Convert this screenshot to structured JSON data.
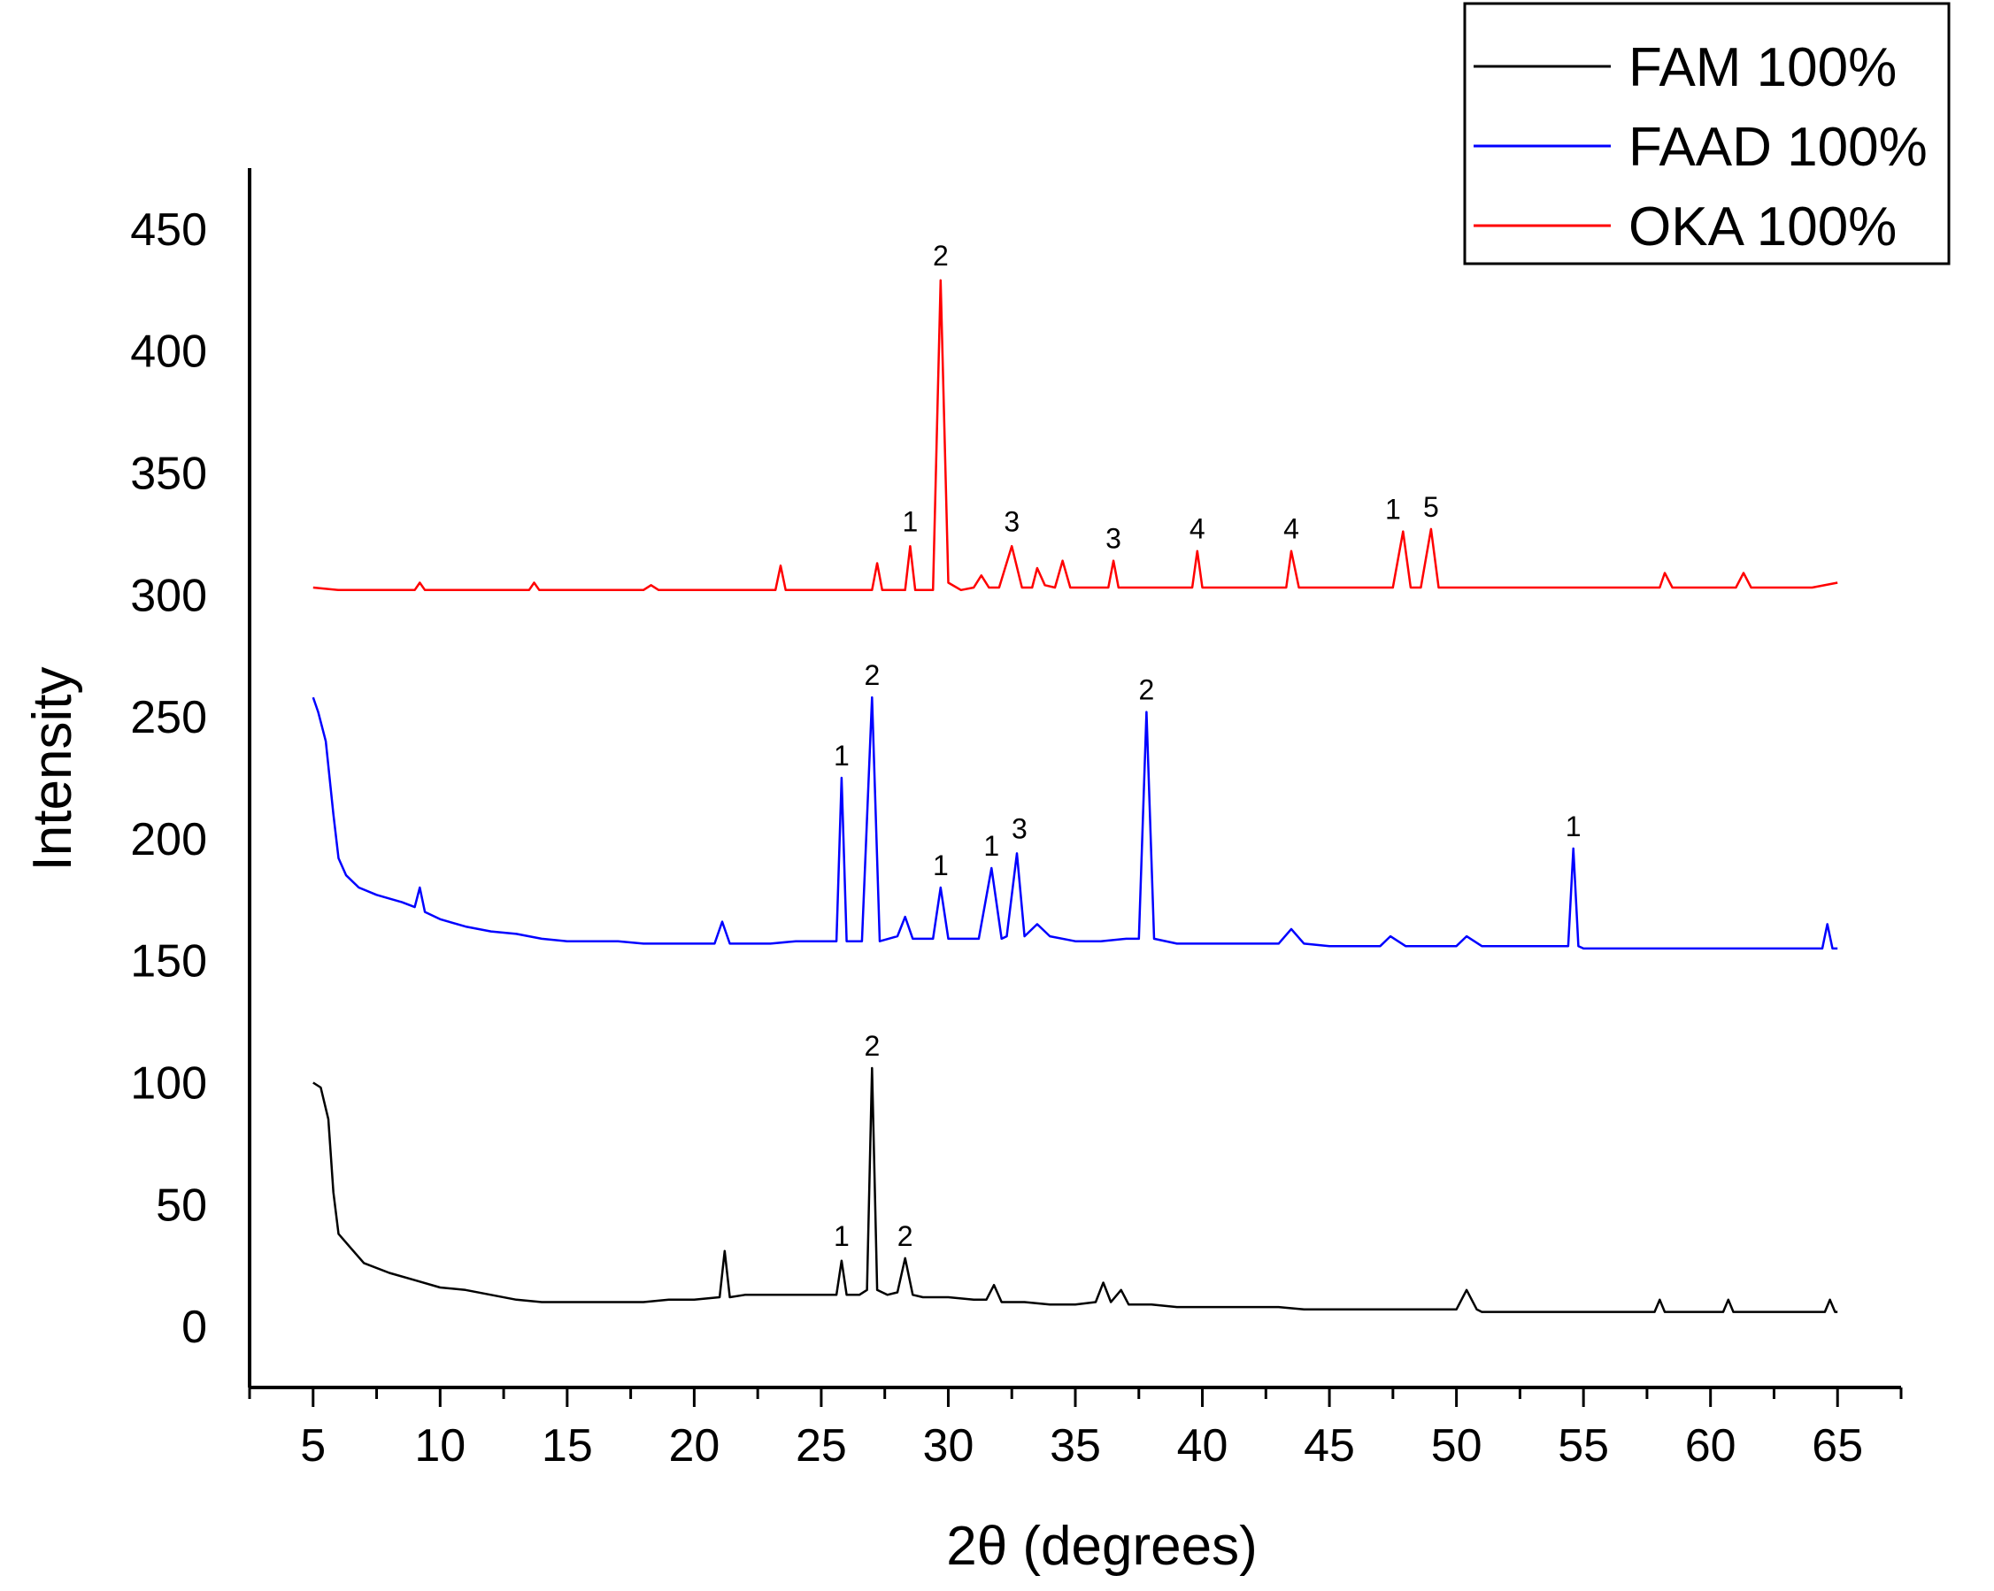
{
  "chart_data": {
    "type": "line",
    "title": "",
    "xlabel": "2θ (degrees)",
    "ylabel": "Intensity",
    "xlim": [
      2.5,
      67.5
    ],
    "ylim": [
      -25,
      475
    ],
    "x_ticks": [
      5,
      10,
      15,
      20,
      25,
      30,
      35,
      40,
      45,
      50,
      55,
      60,
      65
    ],
    "x_tick_labels": [
      "5",
      "10",
      "15",
      "20",
      "25",
      "30",
      "35",
      "40",
      "45",
      "50",
      "55",
      "60",
      "65"
    ],
    "y_ticks": [
      0,
      50,
      100,
      150,
      200,
      250,
      300,
      350,
      400,
      450
    ],
    "y_tick_labels": [
      "0",
      "50",
      "100",
      "150",
      "200",
      "250",
      "300",
      "350",
      "400",
      "450"
    ],
    "legend_position": "top-right",
    "series": [
      {
        "name": "FAM 100%",
        "color": "#000000",
        "points": [
          [
            5,
            100
          ],
          [
            5.3,
            98
          ],
          [
            5.6,
            85
          ],
          [
            5.8,
            55
          ],
          [
            6.0,
            38
          ],
          [
            6.5,
            32
          ],
          [
            7,
            26
          ],
          [
            8,
            22
          ],
          [
            9,
            19
          ],
          [
            10,
            16
          ],
          [
            11,
            15
          ],
          [
            12,
            13
          ],
          [
            13,
            11
          ],
          [
            14,
            10
          ],
          [
            15,
            10
          ],
          [
            16,
            10
          ],
          [
            17,
            10
          ],
          [
            18,
            10
          ],
          [
            19,
            11
          ],
          [
            20,
            11
          ],
          [
            21.0,
            12
          ],
          [
            21.2,
            31
          ],
          [
            21.4,
            12
          ],
          [
            22,
            13
          ],
          [
            23,
            13
          ],
          [
            24,
            13
          ],
          [
            25,
            13
          ],
          [
            25.6,
            13
          ],
          [
            25.8,
            27
          ],
          [
            26.0,
            13
          ],
          [
            26.5,
            13
          ],
          [
            26.8,
            15
          ],
          [
            27.0,
            106
          ],
          [
            27.2,
            15
          ],
          [
            27.6,
            13
          ],
          [
            28.0,
            14
          ],
          [
            28.3,
            28
          ],
          [
            28.6,
            13
          ],
          [
            29,
            12
          ],
          [
            30,
            12
          ],
          [
            31,
            11
          ],
          [
            31.5,
            11
          ],
          [
            31.8,
            17
          ],
          [
            32.1,
            10
          ],
          [
            33,
            10
          ],
          [
            34,
            9
          ],
          [
            35,
            9
          ],
          [
            35.8,
            10
          ],
          [
            36.1,
            18
          ],
          [
            36.4,
            10
          ],
          [
            36.8,
            15
          ],
          [
            37.1,
            9
          ],
          [
            38,
            9
          ],
          [
            39,
            8
          ],
          [
            40,
            8
          ],
          [
            41,
            8
          ],
          [
            42,
            8
          ],
          [
            43,
            8
          ],
          [
            44,
            7
          ],
          [
            45,
            7
          ],
          [
            46,
            7
          ],
          [
            47,
            7
          ],
          [
            48,
            7
          ],
          [
            49,
            7
          ],
          [
            50.0,
            7
          ],
          [
            50.4,
            15
          ],
          [
            50.8,
            7
          ],
          [
            51,
            6
          ],
          [
            52,
            6
          ],
          [
            53,
            6
          ],
          [
            54,
            6
          ],
          [
            55,
            6
          ],
          [
            56,
            6
          ],
          [
            57,
            6
          ],
          [
            57.8,
            6
          ],
          [
            58.0,
            11
          ],
          [
            58.2,
            6
          ],
          [
            59,
            6
          ],
          [
            60,
            6
          ],
          [
            60.5,
            6
          ],
          [
            60.7,
            11
          ],
          [
            60.9,
            6
          ],
          [
            62,
            6
          ],
          [
            63,
            6
          ],
          [
            64,
            6
          ],
          [
            64.5,
            6
          ],
          [
            64.7,
            11
          ],
          [
            64.9,
            6
          ],
          [
            65,
            6
          ]
        ]
      },
      {
        "name": "FAAD 100%",
        "color": "#0000ff",
        "points": [
          [
            5,
            258
          ],
          [
            5.2,
            252
          ],
          [
            5.5,
            240
          ],
          [
            5.8,
            210
          ],
          [
            6.0,
            192
          ],
          [
            6.3,
            185
          ],
          [
            6.8,
            180
          ],
          [
            7.5,
            177
          ],
          [
            8.5,
            174
          ],
          [
            9.0,
            172
          ],
          [
            9.2,
            180
          ],
          [
            9.4,
            170
          ],
          [
            10,
            167
          ],
          [
            11,
            164
          ],
          [
            12,
            162
          ],
          [
            13,
            161
          ],
          [
            14,
            159
          ],
          [
            15,
            158
          ],
          [
            16,
            158
          ],
          [
            17,
            158
          ],
          [
            18,
            157
          ],
          [
            19,
            157
          ],
          [
            20,
            157
          ],
          [
            20.8,
            157
          ],
          [
            21.1,
            166
          ],
          [
            21.4,
            157
          ],
          [
            22,
            157
          ],
          [
            23,
            157
          ],
          [
            24,
            158
          ],
          [
            25,
            158
          ],
          [
            25.6,
            158
          ],
          [
            25.8,
            225
          ],
          [
            26.0,
            158
          ],
          [
            26.6,
            158
          ],
          [
            27.0,
            258
          ],
          [
            27.3,
            158
          ],
          [
            28.0,
            160
          ],
          [
            28.3,
            168
          ],
          [
            28.6,
            159
          ],
          [
            29.4,
            159
          ],
          [
            29.7,
            180
          ],
          [
            30.0,
            159
          ],
          [
            31.2,
            159
          ],
          [
            31.7,
            188
          ],
          [
            32.1,
            159
          ],
          [
            32.3,
            160
          ],
          [
            32.7,
            194
          ],
          [
            33.0,
            160
          ],
          [
            33.5,
            165
          ],
          [
            34,
            160
          ],
          [
            35,
            158
          ],
          [
            36,
            158
          ],
          [
            37,
            159
          ],
          [
            37.5,
            159
          ],
          [
            37.8,
            252
          ],
          [
            38.1,
            159
          ],
          [
            39,
            157
          ],
          [
            40,
            157
          ],
          [
            41,
            157
          ],
          [
            42,
            157
          ],
          [
            43,
            157
          ],
          [
            43.5,
            163
          ],
          [
            44,
            157
          ],
          [
            45,
            156
          ],
          [
            46,
            156
          ],
          [
            47,
            156
          ],
          [
            47.4,
            160
          ],
          [
            48,
            156
          ],
          [
            49,
            156
          ],
          [
            50,
            156
          ],
          [
            50.4,
            160
          ],
          [
            51,
            156
          ],
          [
            52,
            156
          ],
          [
            53,
            156
          ],
          [
            54,
            156
          ],
          [
            54.4,
            156
          ],
          [
            54.6,
            196
          ],
          [
            54.8,
            156
          ],
          [
            55,
            155
          ],
          [
            56,
            155
          ],
          [
            57,
            155
          ],
          [
            58,
            155
          ],
          [
            59,
            155
          ],
          [
            60,
            155
          ],
          [
            61,
            155
          ],
          [
            62,
            155
          ],
          [
            63,
            155
          ],
          [
            64,
            155
          ],
          [
            64.4,
            155
          ],
          [
            64.6,
            165
          ],
          [
            64.8,
            155
          ],
          [
            65,
            155
          ]
        ]
      },
      {
        "name": "OKA 100%",
        "color": "#ff0000",
        "points": [
          [
            5,
            303
          ],
          [
            6,
            302
          ],
          [
            7,
            302
          ],
          [
            8,
            302
          ],
          [
            9,
            302
          ],
          [
            9.2,
            305
          ],
          [
            9.4,
            302
          ],
          [
            10,
            302
          ],
          [
            11,
            302
          ],
          [
            12,
            302
          ],
          [
            13,
            302
          ],
          [
            13.5,
            302
          ],
          [
            13.7,
            305
          ],
          [
            13.9,
            302
          ],
          [
            15,
            302
          ],
          [
            16,
            302
          ],
          [
            17,
            302
          ],
          [
            18,
            302
          ],
          [
            18.3,
            304
          ],
          [
            18.6,
            302
          ],
          [
            20,
            302
          ],
          [
            21,
            302
          ],
          [
            22,
            302
          ],
          [
            23,
            302
          ],
          [
            23.2,
            302
          ],
          [
            23.4,
            312
          ],
          [
            23.6,
            302
          ],
          [
            24,
            302
          ],
          [
            25,
            302
          ],
          [
            26,
            302
          ],
          [
            27,
            302
          ],
          [
            27.2,
            313
          ],
          [
            27.4,
            302
          ],
          [
            28,
            302
          ],
          [
            28.3,
            302
          ],
          [
            28.5,
            320
          ],
          [
            28.7,
            302
          ],
          [
            29.4,
            302
          ],
          [
            29.7,
            429
          ],
          [
            30.0,
            305
          ],
          [
            30.5,
            302
          ],
          [
            31,
            303
          ],
          [
            31.3,
            308
          ],
          [
            31.6,
            303
          ],
          [
            32,
            303
          ],
          [
            32.5,
            320
          ],
          [
            32.9,
            303
          ],
          [
            33.3,
            303
          ],
          [
            33.5,
            311
          ],
          [
            33.8,
            304
          ],
          [
            34.2,
            303
          ],
          [
            34.5,
            314
          ],
          [
            34.8,
            303
          ],
          [
            35,
            303
          ],
          [
            36,
            303
          ],
          [
            36.3,
            303
          ],
          [
            36.5,
            314
          ],
          [
            36.7,
            303
          ],
          [
            37,
            303
          ],
          [
            38,
            303
          ],
          [
            39,
            303
          ],
          [
            39.6,
            303
          ],
          [
            39.8,
            318
          ],
          [
            40.0,
            303
          ],
          [
            41,
            303
          ],
          [
            42,
            303
          ],
          [
            43,
            303
          ],
          [
            43.3,
            303
          ],
          [
            43.5,
            318
          ],
          [
            43.8,
            303
          ],
          [
            44,
            303
          ],
          [
            45,
            303
          ],
          [
            46,
            303
          ],
          [
            47,
            303
          ],
          [
            47.5,
            303
          ],
          [
            47.9,
            326
          ],
          [
            48.2,
            303
          ],
          [
            48.6,
            303
          ],
          [
            49.0,
            327
          ],
          [
            49.3,
            303
          ],
          [
            50,
            303
          ],
          [
            51,
            303
          ],
          [
            52,
            303
          ],
          [
            53,
            303
          ],
          [
            54,
            303
          ],
          [
            55,
            303
          ],
          [
            56,
            303
          ],
          [
            57,
            303
          ],
          [
            58,
            303
          ],
          [
            58.2,
            309
          ],
          [
            58.5,
            303
          ],
          [
            59,
            303
          ],
          [
            60,
            303
          ],
          [
            61,
            303
          ],
          [
            61.3,
            309
          ],
          [
            61.6,
            303
          ],
          [
            62,
            303
          ],
          [
            63,
            303
          ],
          [
            64,
            303
          ],
          [
            65,
            305
          ]
        ]
      }
    ],
    "peak_annotations": [
      {
        "label": "2",
        "x": 29.7,
        "y": 430,
        "color": "#ff0000"
      },
      {
        "label": "1",
        "x": 28.5,
        "y": 321,
        "color": "#ff0000"
      },
      {
        "label": "3",
        "x": 32.5,
        "y": 321,
        "color": "#ff0000"
      },
      {
        "label": "3",
        "x": 36.5,
        "y": 314,
        "color": "#ff0000"
      },
      {
        "label": "4",
        "x": 39.8,
        "y": 318,
        "color": "#ff0000"
      },
      {
        "label": "4",
        "x": 43.5,
        "y": 318,
        "color": "#ff0000"
      },
      {
        "label": "1",
        "x": 47.5,
        "y": 326,
        "color": "#ff0000"
      },
      {
        "label": "5",
        "x": 49.0,
        "y": 327,
        "color": "#ff0000"
      },
      {
        "label": "1",
        "x": 25.8,
        "y": 225,
        "color": "#0000ff"
      },
      {
        "label": "2",
        "x": 27.0,
        "y": 258,
        "color": "#0000ff"
      },
      {
        "label": "1",
        "x": 29.7,
        "y": 180,
        "color": "#0000ff"
      },
      {
        "label": "1",
        "x": 31.7,
        "y": 188,
        "color": "#0000ff"
      },
      {
        "label": "3",
        "x": 32.8,
        "y": 195,
        "color": "#0000ff"
      },
      {
        "label": "2",
        "x": 37.8,
        "y": 252,
        "color": "#0000ff"
      },
      {
        "label": "1",
        "x": 54.6,
        "y": 196,
        "color": "#0000ff"
      },
      {
        "label": "2",
        "x": 27.0,
        "y": 106,
        "color": "#000000"
      },
      {
        "label": "1",
        "x": 25.8,
        "y": 28,
        "color": "#000000"
      },
      {
        "label": "2",
        "x": 28.3,
        "y": 28,
        "color": "#000000"
      }
    ]
  }
}
